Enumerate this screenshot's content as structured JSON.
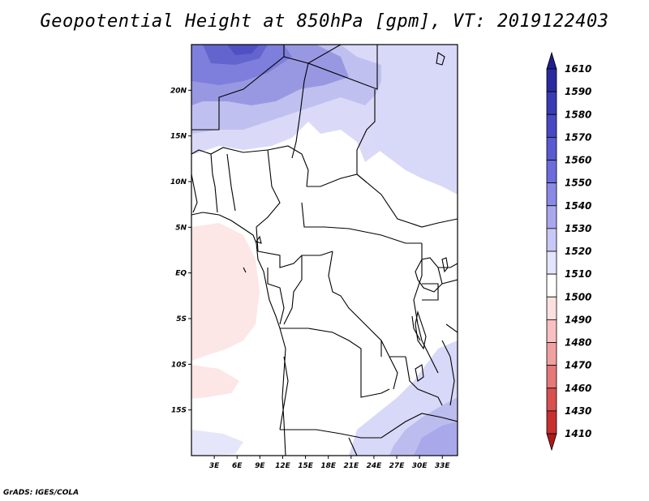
{
  "title": "Geopotential Height at 850hPa [gpm], VT: 2019122403",
  "footer": "GrADS: IGES/COLA",
  "map": {
    "lon_range": [
      0,
      35
    ],
    "lat_range": [
      -20,
      25
    ],
    "lon_ticks": [
      "3E",
      "6E",
      "9E",
      "12E",
      "15E",
      "18E",
      "21E",
      "24E",
      "27E",
      "30E",
      "33E"
    ],
    "lon_tick_values": [
      3,
      6,
      9,
      12,
      15,
      18,
      21,
      24,
      27,
      30,
      33
    ],
    "lat_ticks": [
      "20N",
      "15N",
      "10N",
      "5N",
      "EQ",
      "5S",
      "10S",
      "15S"
    ],
    "lat_tick_values": [
      20,
      15,
      10,
      5,
      0,
      -5,
      -10,
      -15
    ]
  },
  "colorbar": {
    "labels": [
      "1610",
      "1590",
      "1580",
      "1570",
      "1560",
      "1550",
      "1540",
      "1530",
      "1520",
      "1510",
      "1500",
      "1490",
      "1480",
      "1470",
      "1460",
      "1430",
      "1410"
    ],
    "colors": [
      "#1e1e8c",
      "#2a2aa0",
      "#3a3ab4",
      "#4848c4",
      "#5a5ad2",
      "#6c6cdc",
      "#8a8ae6",
      "#a8a8ee",
      "#c8c8f6",
      "#e4e4fc",
      "#ffffff",
      "#fce0e0",
      "#f8c0c0",
      "#f0a0a0",
      "#e67878",
      "#d85050",
      "#c83030",
      "#b01818"
    ]
  }
}
